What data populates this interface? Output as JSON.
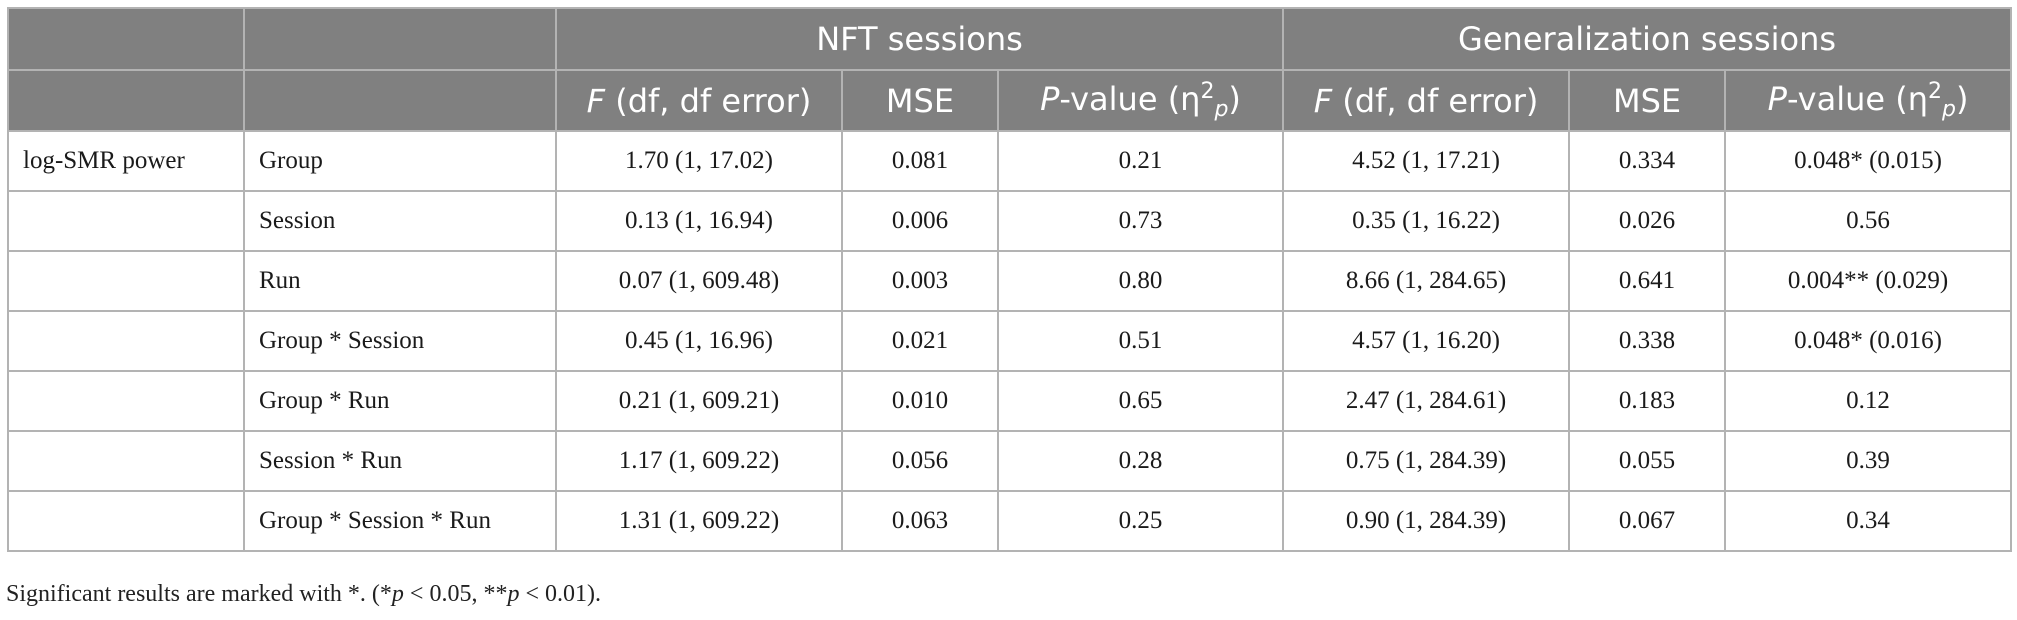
{
  "table": {
    "group_headers": {
      "empty1": "",
      "empty2": "",
      "nft": "NFT sessions",
      "gen": "Generalization sessions"
    },
    "column_headers": {
      "f_label": "F",
      "f_rest": " (df, df error)",
      "mse": "MSE",
      "p_label": "P",
      "p_rest": "-value (η",
      "eta_sup": "2",
      "eta_sub": "p",
      "p_close": ")"
    },
    "rows": [
      {
        "measure": "log-SMR power",
        "effect": "Group",
        "nft_f": "1.70 (1, 17.02)",
        "nft_mse": "0.081",
        "nft_p": "0.21",
        "gen_f": "4.52 (1, 17.21)",
        "gen_mse": "0.334",
        "gen_p": "0.048* (0.015)"
      },
      {
        "measure": "",
        "effect": "Session",
        "nft_f": "0.13 (1, 16.94)",
        "nft_mse": "0.006",
        "nft_p": "0.73",
        "gen_f": "0.35 (1, 16.22)",
        "gen_mse": "0.026",
        "gen_p": "0.56"
      },
      {
        "measure": "",
        "effect": "Run",
        "nft_f": "0.07 (1, 609.48)",
        "nft_mse": "0.003",
        "nft_p": "0.80",
        "gen_f": "8.66 (1, 284.65)",
        "gen_mse": "0.641",
        "gen_p": "0.004** (0.029)"
      },
      {
        "measure": "",
        "effect": "Group * Session",
        "nft_f": "0.45 (1, 16.96)",
        "nft_mse": "0.021",
        "nft_p": "0.51",
        "gen_f": "4.57 (1, 16.20)",
        "gen_mse": "0.338",
        "gen_p": "0.048* (0.016)"
      },
      {
        "measure": "",
        "effect": "Group * Run",
        "nft_f": "0.21 (1, 609.21)",
        "nft_mse": "0.010",
        "nft_p": "0.65",
        "gen_f": "2.47 (1, 284.61)",
        "gen_mse": "0.183",
        "gen_p": "0.12"
      },
      {
        "measure": "",
        "effect": "Session * Run",
        "nft_f": "1.17 (1, 609.22)",
        "nft_mse": "0.056",
        "nft_p": "0.28",
        "gen_f": "0.75 (1, 284.39)",
        "gen_mse": "0.055",
        "gen_p": "0.39"
      },
      {
        "measure": "",
        "effect": "Group * Session * Run",
        "nft_f": "1.31 (1, 609.22)",
        "nft_mse": "0.063",
        "nft_p": "0.25",
        "gen_f": "0.90 (1, 284.39)",
        "gen_mse": "0.067",
        "gen_p": "0.34"
      }
    ]
  },
  "footnote": {
    "a": "Significant results are marked with *. (*",
    "p1": "p",
    "b": " < 0.05, **",
    "p2": "p",
    "c": " < 0.01)."
  }
}
